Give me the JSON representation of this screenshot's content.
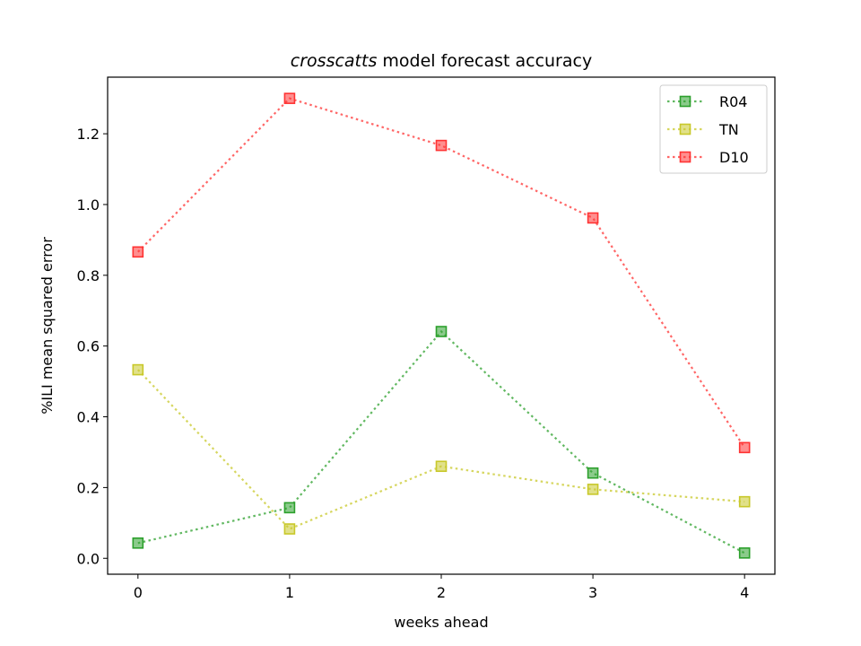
{
  "chart_data": {
    "type": "line",
    "title_italic": "crosscatts",
    "title_rest": " model forecast accuracy",
    "xlabel": "weeks ahead",
    "ylabel": "%ILI mean squared error",
    "x": [
      0,
      1,
      2,
      3,
      4
    ],
    "xticks": [
      "0",
      "1",
      "2",
      "3",
      "4"
    ],
    "yticks": [
      "0.0",
      "0.2",
      "0.4",
      "0.6",
      "0.8",
      "1.0",
      "1.2"
    ],
    "xlim": [
      -0.2,
      4.2
    ],
    "ylim": [
      -0.045,
      1.36
    ],
    "legend_position": "top-right",
    "grid": false,
    "marker": "square",
    "line_style": "dotted",
    "series": [
      {
        "name": "R04",
        "color": "#2ca02c",
        "values": [
          0.043,
          0.143,
          0.641,
          0.241,
          0.015
        ]
      },
      {
        "name": "TN",
        "color": "#c8c82a",
        "values": [
          0.533,
          0.083,
          0.26,
          0.195,
          0.16
        ]
      },
      {
        "name": "D10",
        "color": "#ff3333",
        "values": [
          0.866,
          1.3,
          1.167,
          0.962,
          0.313
        ]
      }
    ]
  }
}
